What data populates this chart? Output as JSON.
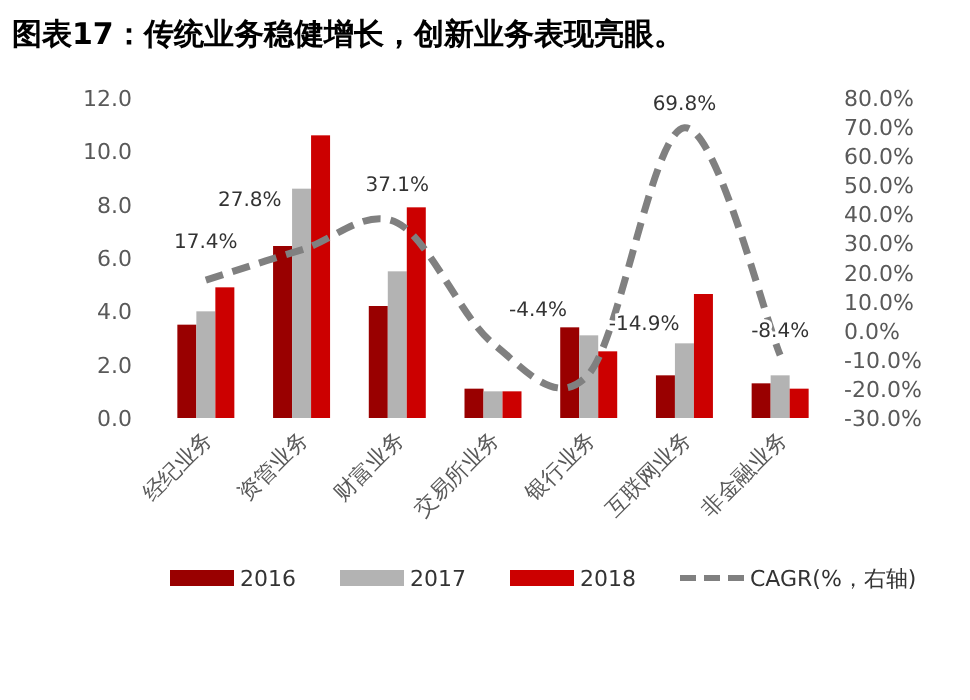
{
  "chart_data": {
    "type": "bar",
    "title": "图表17：传统业务稳健增长，创新业务表现亮眼。",
    "categories": [
      "经纪业务",
      "资管业务",
      "财富业务",
      "交易所业务",
      "银行业务",
      "互联网业务",
      "非金融业务"
    ],
    "series": [
      {
        "name": "2016",
        "color": "#990000",
        "values": [
          3.5,
          6.45,
          4.2,
          1.1,
          3.4,
          1.6,
          1.3
        ]
      },
      {
        "name": "2017",
        "color": "#b3b3b3",
        "values": [
          4.0,
          8.6,
          5.5,
          1.0,
          3.1,
          2.8,
          1.6
        ]
      },
      {
        "name": "2018",
        "color": "#cc0000",
        "values": [
          4.9,
          10.6,
          7.9,
          1.0,
          2.5,
          4.65,
          1.1
        ]
      },
      {
        "name": "CAGR(%，右轴)",
        "type": "line",
        "axis": "y2",
        "line_style": "dashed",
        "color": "#808080",
        "values": [
          17.4,
          27.8,
          37.1,
          -4.4,
          -14.9,
          69.8,
          -8.4
        ],
        "value_labels": [
          "17.4%",
          "27.8%",
          "37.1%",
          "-4.4%",
          "-14.9%",
          "69.8%",
          "-8.4%"
        ]
      }
    ],
    "ylim": [
      0,
      12
    ],
    "yticks": [
      {
        "value": 0,
        "label": "0.0"
      },
      {
        "value": 2,
        "label": "2.0"
      },
      {
        "value": 4,
        "label": "4.0"
      },
      {
        "value": 6,
        "label": "6.0"
      },
      {
        "value": 8,
        "label": "8.0"
      },
      {
        "value": 10,
        "label": "10.0"
      },
      {
        "value": 12,
        "label": "12.0"
      }
    ],
    "y2lim": [
      -30,
      80
    ],
    "y2ticks": [
      {
        "value": -30,
        "label": "-30.0%"
      },
      {
        "value": -20,
        "label": "-20.0%"
      },
      {
        "value": -10,
        "label": "-10.0%"
      },
      {
        "value": 0,
        "label": "0.0%"
      },
      {
        "value": 10,
        "label": "10.0%"
      },
      {
        "value": 20,
        "label": "20.0%"
      },
      {
        "value": 30,
        "label": "30.0%"
      },
      {
        "value": 40,
        "label": "40.0%"
      },
      {
        "value": 50,
        "label": "50.0%"
      },
      {
        "value": 60,
        "label": "60.0%"
      },
      {
        "value": 70,
        "label": "70.0%"
      },
      {
        "value": 80,
        "label": "80.0%"
      }
    ],
    "legend": "bottom"
  }
}
